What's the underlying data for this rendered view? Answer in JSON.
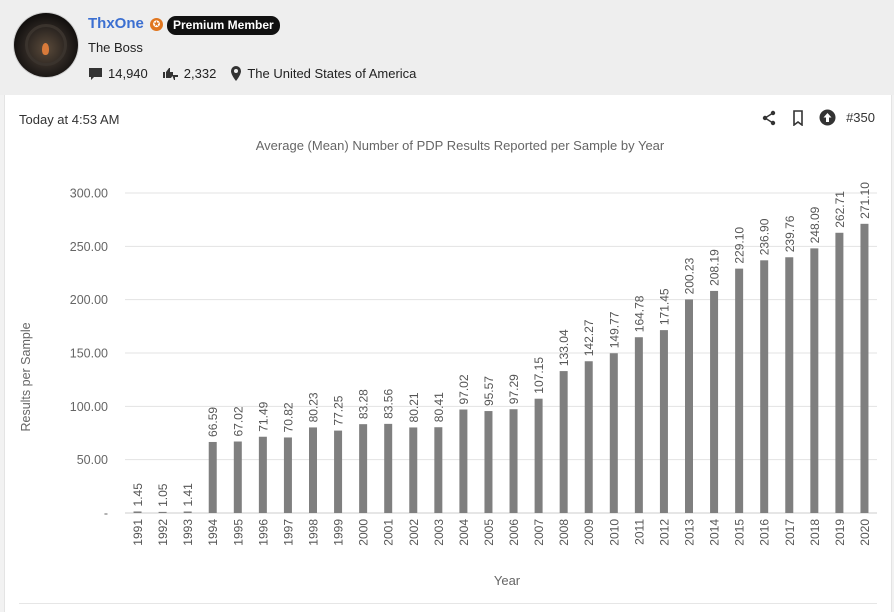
{
  "user": {
    "name": "ThxOne",
    "badge": "Premium Member",
    "title": "The Boss",
    "messages": "14,940",
    "reactions": "2,332",
    "location": "The United States of America"
  },
  "post": {
    "time": "Today at 4:53 AM",
    "number": "#350"
  },
  "icons": {
    "messages": "speech-bubble-icon",
    "reactions": "thumbs-up-down-icon",
    "location": "map-pin-icon",
    "share": "share-icon",
    "bookmark": "bookmark-icon",
    "upvote": "arrow-up-circle-icon",
    "premium": "star-badge-icon"
  },
  "colors": {
    "username": "#3b6fd1",
    "bar": "#7f7f7f",
    "premium_star": "#e0761f"
  },
  "chart_data": {
    "type": "bar",
    "title": "Average (Mean) Number of PDP Results Reported per Sample by Year",
    "xlabel": "Year",
    "ylabel": "Results per Sample",
    "ylim": [
      0,
      300
    ],
    "yticks": [
      "-",
      "50.00",
      "100.00",
      "150.00",
      "200.00",
      "250.00",
      "300.00"
    ],
    "grid": true,
    "categories": [
      "1991",
      "1992",
      "1993",
      "1994",
      "1995",
      "1996",
      "1997",
      "1998",
      "1999",
      "2000",
      "2001",
      "2002",
      "2003",
      "2004",
      "2005",
      "2006",
      "2007",
      "2008",
      "2009",
      "2010",
      "2011",
      "2012",
      "2013",
      "2014",
      "2015",
      "2016",
      "2017",
      "2018",
      "2019",
      "2020"
    ],
    "values": [
      1.45,
      1.05,
      1.41,
      66.59,
      67.02,
      71.49,
      70.82,
      80.23,
      77.25,
      83.28,
      83.56,
      80.21,
      80.41,
      97.02,
      95.57,
      97.29,
      107.15,
      133.04,
      142.27,
      149.77,
      164.78,
      171.45,
      200.23,
      208.19,
      229.1,
      236.9,
      239.76,
      248.09,
      262.71,
      271.1
    ],
    "labels": [
      "1.45",
      "1.05",
      "1.41",
      "66.59",
      "67.02",
      "71.49",
      "70.82",
      "80.23",
      "77.25",
      "83.28",
      "83.56",
      "80.21",
      "80.41",
      "97.02",
      "95.57",
      "97.29",
      "107.15",
      "133.04",
      "142.27",
      "149.77",
      "164.78",
      "171.45",
      "200.23",
      "208.19",
      "229.10",
      "236.90",
      "239.76",
      "248.09",
      "262.71",
      "271.10"
    ]
  }
}
